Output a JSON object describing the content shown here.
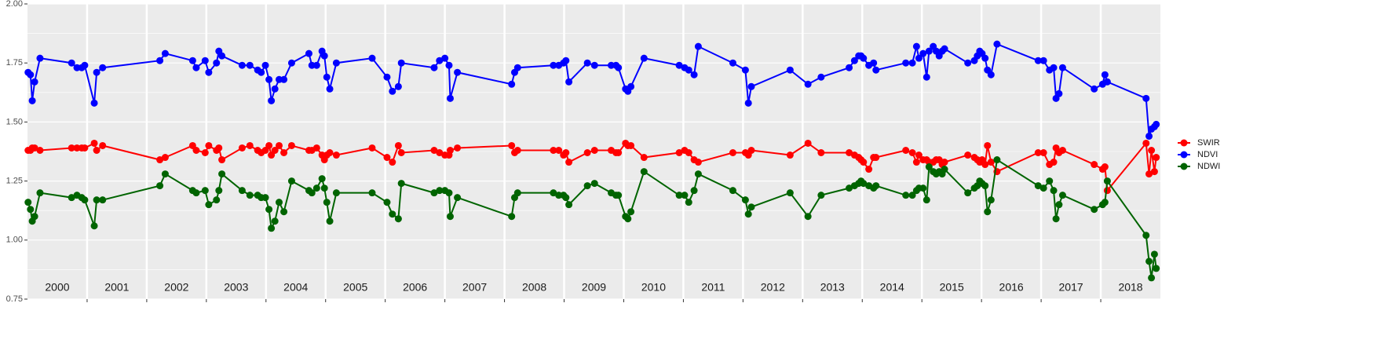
{
  "chart_data": {
    "type": "line",
    "x": [
      2000.01,
      2000.05,
      2000.08,
      2000.12,
      2000.21,
      2000.74,
      2000.83,
      2000.91,
      2000.96,
      2001.12,
      2001.16,
      2001.26,
      2002.22,
      2002.31,
      2002.77,
      2002.83,
      2002.98,
      2003.04,
      2003.17,
      2003.21,
      2003.26,
      2003.6,
      2003.73,
      2003.86,
      2003.92,
      2003.99,
      2004.05,
      2004.09,
      2004.15,
      2004.22,
      2004.3,
      2004.43,
      2004.72,
      2004.77,
      2004.85,
      2004.94,
      2004.98,
      2005.02,
      2005.07,
      2005.18,
      2005.78,
      2006.03,
      2006.12,
      2006.22,
      2006.27,
      2006.82,
      2006.91,
      2007.0,
      2007.07,
      2007.09,
      2007.21,
      2008.12,
      2008.17,
      2008.22,
      2008.82,
      2008.91,
      2008.99,
      2009.03,
      2009.08,
      2009.39,
      2009.51,
      2009.79,
      2009.87,
      2009.91,
      2010.03,
      2010.07,
      2010.12,
      2010.34,
      2010.93,
      2011.02,
      2011.09,
      2011.18,
      2011.25,
      2011.83,
      2012.04,
      2012.09,
      2012.14,
      2012.79,
      2013.09,
      2013.31,
      2013.78,
      2013.87,
      2013.94,
      2013.98,
      2014.02,
      2014.11,
      2014.19,
      2014.23,
      2014.73,
      2014.84,
      2014.91,
      2014.95,
      2015.02,
      2015.08,
      2015.12,
      2015.19,
      2015.24,
      2015.29,
      2015.34,
      2015.38,
      2015.77,
      2015.88,
      2015.93,
      2015.97,
      2016.01,
      2016.06,
      2016.1,
      2016.16,
      2016.26,
      2016.95,
      2017.04,
      2017.14,
      2017.21,
      2017.25,
      2017.3,
      2017.36,
      2017.89,
      2018.03,
      2018.07,
      2018.11,
      2018.76,
      2018.81,
      2018.85,
      2018.9,
      2018.93
    ],
    "series": [
      {
        "name": "SWIR",
        "color": "#ff0000",
        "values": [
          1.38,
          1.38,
          1.39,
          1.39,
          1.38,
          1.39,
          1.39,
          1.39,
          1.39,
          1.41,
          1.38,
          1.4,
          1.34,
          1.35,
          1.4,
          1.38,
          1.37,
          1.4,
          1.38,
          1.39,
          1.34,
          1.39,
          1.4,
          1.38,
          1.37,
          1.38,
          1.4,
          1.36,
          1.38,
          1.4,
          1.37,
          1.4,
          1.38,
          1.38,
          1.39,
          1.36,
          1.34,
          1.36,
          1.37,
          1.36,
          1.39,
          1.35,
          1.33,
          1.4,
          1.37,
          1.38,
          1.37,
          1.36,
          1.36,
          1.38,
          1.39,
          1.4,
          1.37,
          1.38,
          1.38,
          1.38,
          1.36,
          1.37,
          1.33,
          1.37,
          1.38,
          1.38,
          1.37,
          1.37,
          1.41,
          1.4,
          1.4,
          1.35,
          1.37,
          1.38,
          1.37,
          1.34,
          1.33,
          1.37,
          1.37,
          1.36,
          1.38,
          1.36,
          1.41,
          1.37,
          1.37,
          1.36,
          1.35,
          1.34,
          1.33,
          1.3,
          1.35,
          1.35,
          1.38,
          1.37,
          1.33,
          1.36,
          1.34,
          1.34,
          1.33,
          1.33,
          1.34,
          1.34,
          1.32,
          1.33,
          1.36,
          1.35,
          1.34,
          1.33,
          1.34,
          1.32,
          1.4,
          1.33,
          1.29,
          1.37,
          1.37,
          1.32,
          1.33,
          1.39,
          1.37,
          1.38,
          1.32,
          1.3,
          1.31,
          1.21,
          1.41,
          1.28,
          1.38,
          1.29,
          1.35
        ]
      },
      {
        "name": "NDVI",
        "color": "#0000ff",
        "values": [
          1.71,
          1.7,
          1.59,
          1.67,
          1.77,
          1.75,
          1.73,
          1.73,
          1.74,
          1.58,
          1.71,
          1.73,
          1.76,
          1.79,
          1.76,
          1.73,
          1.76,
          1.71,
          1.75,
          1.8,
          1.78,
          1.74,
          1.74,
          1.72,
          1.71,
          1.74,
          1.68,
          1.59,
          1.64,
          1.68,
          1.68,
          1.75,
          1.79,
          1.74,
          1.74,
          1.8,
          1.78,
          1.69,
          1.64,
          1.75,
          1.77,
          1.69,
          1.63,
          1.65,
          1.75,
          1.73,
          1.76,
          1.77,
          1.74,
          1.6,
          1.71,
          1.66,
          1.71,
          1.73,
          1.74,
          1.74,
          1.75,
          1.76,
          1.67,
          1.75,
          1.74,
          1.74,
          1.74,
          1.73,
          1.64,
          1.63,
          1.65,
          1.77,
          1.74,
          1.73,
          1.72,
          1.7,
          1.82,
          1.75,
          1.72,
          1.58,
          1.65,
          1.72,
          1.66,
          1.69,
          1.73,
          1.76,
          1.78,
          1.78,
          1.77,
          1.74,
          1.75,
          1.72,
          1.75,
          1.75,
          1.82,
          1.77,
          1.79,
          1.69,
          1.8,
          1.82,
          1.8,
          1.78,
          1.8,
          1.81,
          1.75,
          1.76,
          1.78,
          1.8,
          1.79,
          1.77,
          1.72,
          1.7,
          1.83,
          1.76,
          1.76,
          1.72,
          1.73,
          1.6,
          1.62,
          1.73,
          1.64,
          1.66,
          1.7,
          1.67,
          1.6,
          1.44,
          1.47,
          1.48,
          1.49
        ]
      },
      {
        "name": "NDWI",
        "color": "#006400",
        "values": [
          1.16,
          1.13,
          1.08,
          1.1,
          1.2,
          1.18,
          1.19,
          1.18,
          1.17,
          1.06,
          1.17,
          1.17,
          1.23,
          1.28,
          1.21,
          1.2,
          1.21,
          1.15,
          1.17,
          1.21,
          1.28,
          1.21,
          1.19,
          1.19,
          1.18,
          1.18,
          1.13,
          1.05,
          1.08,
          1.16,
          1.12,
          1.25,
          1.21,
          1.2,
          1.22,
          1.26,
          1.22,
          1.16,
          1.08,
          1.2,
          1.2,
          1.16,
          1.11,
          1.09,
          1.24,
          1.2,
          1.21,
          1.21,
          1.2,
          1.1,
          1.18,
          1.1,
          1.18,
          1.2,
          1.2,
          1.19,
          1.19,
          1.18,
          1.15,
          1.23,
          1.24,
          1.2,
          1.19,
          1.19,
          1.1,
          1.09,
          1.12,
          1.29,
          1.19,
          1.19,
          1.16,
          1.21,
          1.28,
          1.21,
          1.17,
          1.11,
          1.14,
          1.2,
          1.1,
          1.19,
          1.22,
          1.23,
          1.24,
          1.25,
          1.24,
          1.23,
          1.22,
          1.23,
          1.19,
          1.19,
          1.21,
          1.22,
          1.22,
          1.17,
          1.31,
          1.29,
          1.28,
          1.29,
          1.28,
          1.3,
          1.2,
          1.22,
          1.23,
          1.25,
          1.24,
          1.23,
          1.12,
          1.17,
          1.34,
          1.23,
          1.22,
          1.25,
          1.21,
          1.09,
          1.15,
          1.19,
          1.13,
          1.15,
          1.16,
          1.25,
          1.02,
          0.91,
          0.84,
          0.94,
          0.88
        ]
      }
    ],
    "xlim": [
      2000,
      2019
    ],
    "xticks": [
      2001,
      2002,
      2003,
      2004,
      2005,
      2006,
      2007,
      2008,
      2009,
      2010,
      2011,
      2012,
      2013,
      2014,
      2015,
      2016,
      2017,
      2018
    ],
    "year_labels": [
      "2000",
      "2001",
      "2002",
      "2003",
      "2004",
      "2005",
      "2006",
      "2007",
      "2008",
      "2009",
      "2010",
      "2011",
      "2012",
      "2013",
      "2014",
      "2015",
      "2016",
      "2017",
      "2018"
    ],
    "ylim": [
      0.75,
      2.0
    ],
    "yticks": [
      {
        "value": 0.75,
        "label": "0.75"
      },
      {
        "value": 1,
        "label": "1.00"
      },
      {
        "value": 1.25,
        "label": "1.25"
      },
      {
        "value": 1.5,
        "label": "1.50"
      },
      {
        "value": 1.75,
        "label": "1.75"
      },
      {
        "value": 2,
        "label": "2.00"
      }
    ],
    "yminor": [
      0.875,
      1.125,
      1.375,
      1.625,
      1.875
    ],
    "grid": true,
    "legend": "right"
  }
}
